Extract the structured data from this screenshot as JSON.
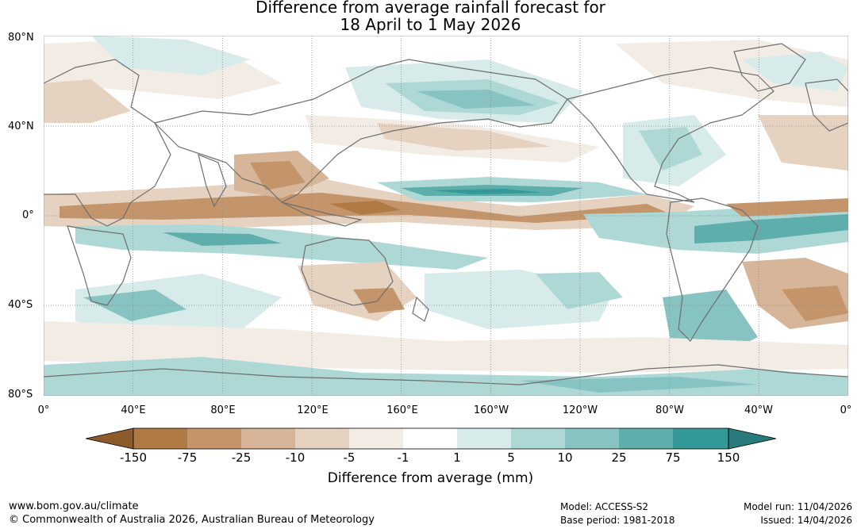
{
  "title": {
    "line1": "Difference from average rainfall forecast for",
    "line2": "18 April to 1 May 2026"
  },
  "map": {
    "lat_labels": [
      "80°N",
      "40°N",
      "0°",
      "40°S",
      "80°S"
    ],
    "lon_labels": [
      "0°",
      "40°E",
      "80°E",
      "120°E",
      "160°E",
      "160°W",
      "120°W",
      "80°W",
      "40°W",
      "0°"
    ]
  },
  "legend": {
    "label": "Difference from average (mm)",
    "ticks": [
      "-150",
      "-75",
      "-25",
      "-10",
      "-5",
      "-1",
      "1",
      "5",
      "10",
      "25",
      "75",
      "150"
    ],
    "colors": [
      "#8c5a2b",
      "#b07a45",
      "#c4956a",
      "#d6b598",
      "#e6d2c0",
      "#f3ece5",
      "#ffffff",
      "#d6ebea",
      "#aed8d6",
      "#86c3c1",
      "#5eaeab",
      "#35999a",
      "#287b7b"
    ]
  },
  "footer": {
    "url": "www.bom.gov.au/climate",
    "copyright": "© Commonwealth of Australia 2026, Australian Bureau of Meteorology",
    "model": "Model: ACCESS-S2",
    "base_period": "Base period: 1981-2018",
    "model_run": "Model run: 11/04/2026",
    "issued": "Issued: 14/04/2026"
  }
}
